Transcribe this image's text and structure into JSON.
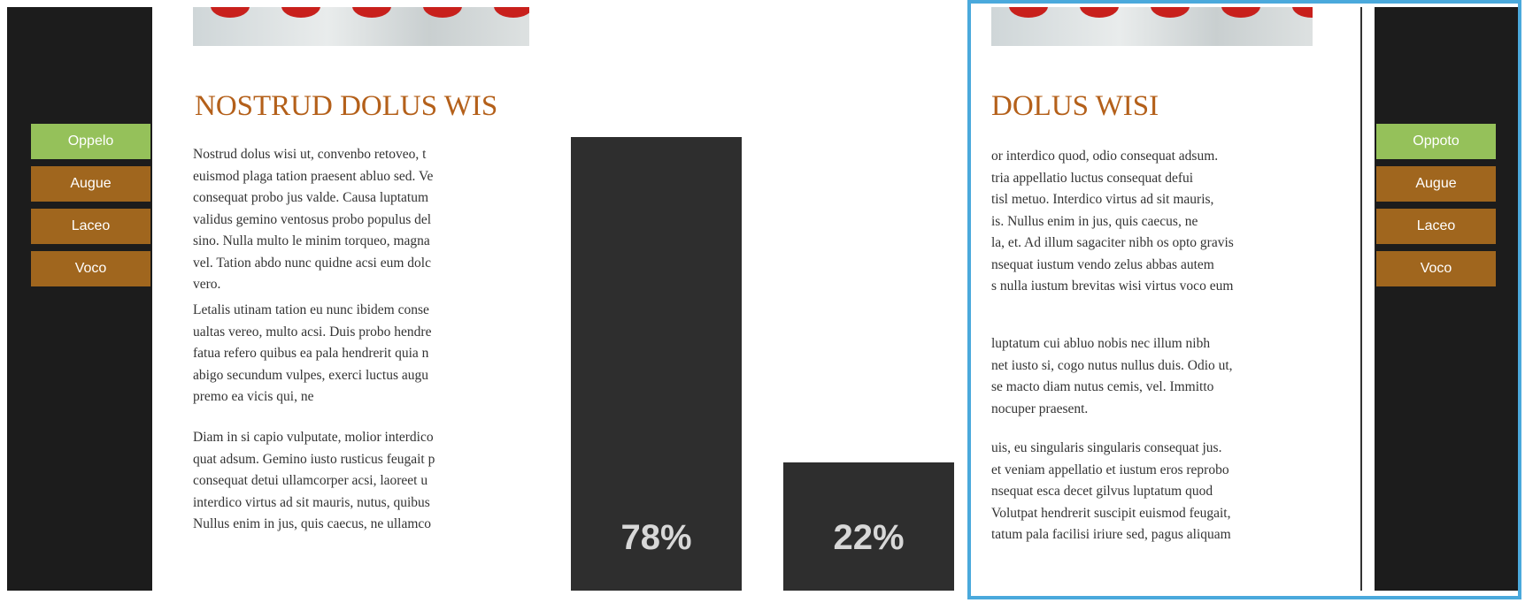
{
  "left": {
    "menu": [
      "Oppelo",
      "Augue",
      "Laceo",
      "Voco"
    ],
    "heading": "NOSTRUD DOLUS WIS",
    "paragraphs": [
      [
        "Nostrud dolus wisi ut, convenbo retoveo, t",
        "euismod plaga tation praesent abluo sed. Ve",
        "consequat probo jus valde. Causa luptatum",
        "validus gemino ventosus probo populus del",
        "sino. Nulla multo le minim torqueo, magna",
        "vel. Tation abdo nunc quidne acsi eum dolc",
        "vero."
      ],
      [
        "Letalis utinam tation eu nunc ibidem conse",
        "ualtas vereo, multo acsi. Duis probo hendre",
        "fatua refero quibus ea pala hendrerit quia n",
        "abigo secundum vulpes, exerci luctus augu",
        "premo ea vicis qui, ne"
      ],
      [
        "Diam in si capio vulputate, molior interdico",
        "quat adsum. Gemino iusto rusticus feugait p",
        "consequat detui ullamcorper acsi, laoreet u",
        "interdico virtus ad sit mauris, nutus, quibus",
        "Nullus enim in jus, quis caecus, ne ullamco"
      ]
    ]
  },
  "right": {
    "menu": [
      "Oppoto",
      "Augue",
      "Laceo",
      "Voco"
    ],
    "heading": "DOLUS WISI",
    "paragraphs": [
      [
        "or interdico quod, odio consequat adsum.",
        "tria appellatio luctus consequat defui",
        "tisl metuo. Interdico virtus ad sit mauris,",
        "is. Nullus enim in jus, quis caecus, ne",
        "la, et. Ad illum sagaciter nibh os opto gravis",
        "nsequat iustum vendo zelus abbas autem",
        "s nulla iustum brevitas wisi virtus voco eum"
      ],
      [
        "luptatum cui abluo nobis nec illum nibh",
        "net iusto si, cogo nutus nullus duis. Odio ut,",
        "se macto diam nutus cemis, vel. Immitto",
        "nocuper praesent."
      ],
      [
        "uis, eu singularis singularis consequat jus.",
        "et veniam appellatio et iustum eros reprobo",
        "nsequat esca decet gilvus luptatum quod",
        "Volutpat hendrerit suscipit euismod feugait,",
        "tatum pala facilisi iriure sed, pagus aliquam"
      ]
    ]
  },
  "results": [
    {
      "value": 78,
      "label": "78%"
    },
    {
      "value": 22,
      "label": "22%"
    }
  ]
}
